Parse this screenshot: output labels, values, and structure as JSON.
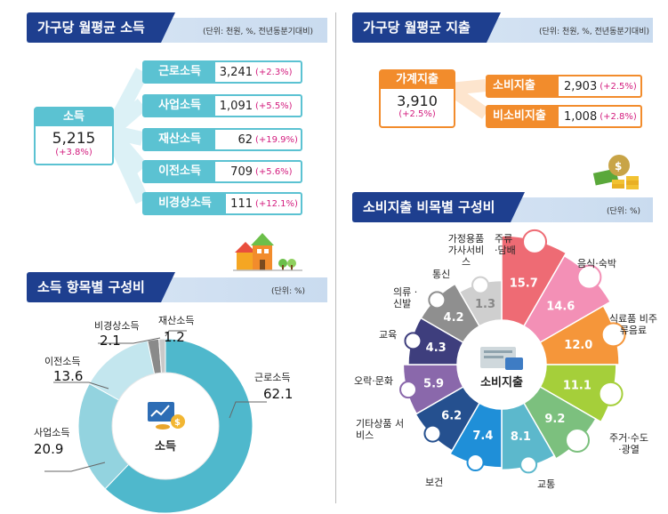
{
  "left": {
    "income_title": "가구당 월평균 소득",
    "income_unit": "(단위: 천원, %, 전년동분기대비)",
    "total": {
      "label": "소득",
      "value": "5,215",
      "pct": "(+3.8%)"
    },
    "items": [
      {
        "label": "근로소득",
        "value": "3,241",
        "pct": "(+2.3%)"
      },
      {
        "label": "사업소득",
        "value": "1,091",
        "pct": "(+5.5%)"
      },
      {
        "label": "재산소득",
        "value": "62",
        "pct": "(+19.9%)"
      },
      {
        "label": "이전소득",
        "value": "709",
        "pct": "(+5.6%)"
      },
      {
        "label": "비경상소득",
        "value": "111",
        "pct": "(+12.1%)"
      }
    ],
    "comp_title": "소득 항목별 구성비",
    "comp_unit": "(단위: %)",
    "center_label": "소득"
  },
  "right": {
    "exp_title": "가구당 월평균 지출",
    "exp_unit": "(단위: 천원, %, 전년동분기대비)",
    "total": {
      "label": "가계지출",
      "value": "3,910",
      "pct": "(+2.5%)"
    },
    "items": [
      {
        "label": "소비지출",
        "value": "2,903",
        "pct": "(+2.5%)"
      },
      {
        "label": "비소비지출",
        "value": "1,008",
        "pct": "(+2.8%)"
      }
    ],
    "comp_title": "소비지출 비목별 구성비",
    "comp_unit": "(단위: %)",
    "center_label": "소비지출"
  },
  "chart_data": [
    {
      "type": "pie",
      "title": "소득 항목별 구성비",
      "categories": [
        "근로소득",
        "사업소득",
        "이전소득",
        "비경상소득",
        "재산소득"
      ],
      "values": [
        62.1,
        20.9,
        13.6,
        2.1,
        1.2
      ],
      "colors": [
        "#4fb8cc",
        "#93d3df",
        "#c3e6ee",
        "#8a8a8a",
        "#c9c9c9"
      ]
    },
    {
      "type": "pie",
      "title": "소비지출 비목별 구성비",
      "categories": [
        "음식·숙박",
        "식료품 비주류음료",
        "주거·수도 ·광열",
        "교통",
        "보건",
        "기타상품 서비스",
        "오락·문화",
        "교육",
        "의류 ·신발",
        "통신",
        "가정용품 가사서비스",
        "주류 ·담배"
      ],
      "values": [
        15.7,
        14.6,
        12.0,
        11.1,
        9.2,
        8.1,
        7.4,
        6.2,
        5.9,
        4.3,
        4.2,
        1.3
      ],
      "colors": [
        "#ee6b74",
        "#f390b6",
        "#f5963a",
        "#a5cf3a",
        "#7cc07e",
        "#5cb8cc",
        "#1f8fd8",
        "#25508f",
        "#8a68ab",
        "#3e3e7d",
        "#8f8f8f",
        "#cfcfcf"
      ]
    }
  ]
}
